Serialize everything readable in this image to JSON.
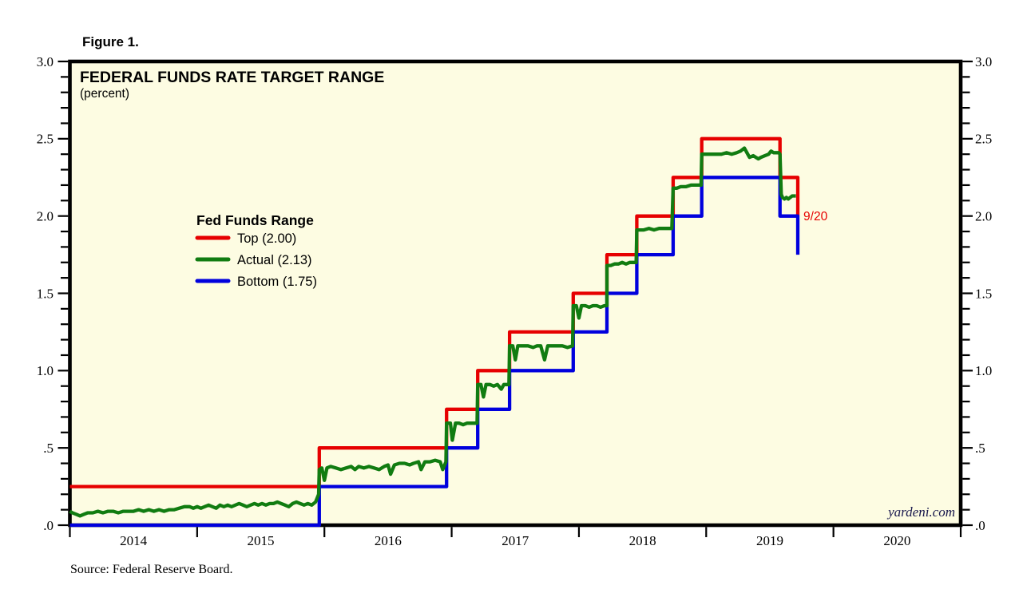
{
  "page": {
    "figure_label": "Figure 1.",
    "source_note": "Source: Federal Reserve Board.",
    "watermark": "yardeni.com"
  },
  "chart_data": {
    "type": "line",
    "title": "FEDERAL FUNDS RATE TARGET RANGE",
    "subtitle": "(percent)",
    "legend_title": "Fed Funds Range",
    "legend_position": "upper-left-inside",
    "grid": false,
    "x_domain": [
      2014,
      2021
    ],
    "y_domain": [
      0,
      3.0
    ],
    "y_axis": {
      "sides": "both",
      "minor_step": 0.1,
      "major_ticks": [
        {
          "v": 3.0,
          "label": "3.0"
        },
        {
          "v": 2.5,
          "label": "2.5"
        },
        {
          "v": 2.0,
          "label": "2.0"
        },
        {
          "v": 1.5,
          "label": "1.5"
        },
        {
          "v": 1.0,
          "label": "1.0"
        },
        {
          "v": 0.5,
          "label": ".5"
        },
        {
          "v": 0.0,
          "label": ".0"
        }
      ]
    },
    "x_axis": {
      "tick_years": [
        2014,
        2015,
        2016,
        2017,
        2018,
        2019,
        2020,
        2021
      ],
      "year_labels": [
        {
          "v": 2014.5,
          "label": "2014"
        },
        {
          "v": 2015.5,
          "label": "2015"
        },
        {
          "v": 2016.5,
          "label": "2016"
        },
        {
          "v": 2017.5,
          "label": "2017"
        },
        {
          "v": 2018.5,
          "label": "2018"
        },
        {
          "v": 2019.5,
          "label": "2019"
        },
        {
          "v": 2020.5,
          "label": "2020"
        }
      ]
    },
    "colors": {
      "plot_bg": "#fdfce2",
      "frame": "#000000"
    },
    "annotation": {
      "label": "9/20",
      "x": 2019.72,
      "y": 2.0,
      "color": "#e60000"
    },
    "draw_order": [
      0,
      2,
      1
    ],
    "series": [
      {
        "name": "Top (2.00)",
        "color": "#e60000",
        "points": [
          [
            2014.0,
            0.25
          ],
          [
            2015.96,
            0.25
          ],
          [
            2015.96,
            0.5
          ],
          [
            2016.96,
            0.5
          ],
          [
            2016.96,
            0.75
          ],
          [
            2017.205,
            0.75
          ],
          [
            2017.205,
            1.0
          ],
          [
            2017.455,
            1.0
          ],
          [
            2017.455,
            1.25
          ],
          [
            2017.955,
            1.25
          ],
          [
            2017.955,
            1.5
          ],
          [
            2018.22,
            1.5
          ],
          [
            2018.22,
            1.75
          ],
          [
            2018.455,
            1.75
          ],
          [
            2018.455,
            2.0
          ],
          [
            2018.74,
            2.0
          ],
          [
            2018.74,
            2.25
          ],
          [
            2018.965,
            2.25
          ],
          [
            2018.965,
            2.5
          ],
          [
            2019.58,
            2.5
          ],
          [
            2019.58,
            2.25
          ],
          [
            2019.72,
            2.25
          ],
          [
            2019.72,
            2.0
          ]
        ]
      },
      {
        "name": "Actual (2.13)",
        "color": "#117c11",
        "points": [
          [
            2014.0,
            0.09
          ],
          [
            2014.02,
            0.08
          ],
          [
            2014.05,
            0.07
          ],
          [
            2014.08,
            0.06
          ],
          [
            2014.11,
            0.07
          ],
          [
            2014.14,
            0.08
          ],
          [
            2014.18,
            0.08
          ],
          [
            2014.22,
            0.09
          ],
          [
            2014.26,
            0.08
          ],
          [
            2014.3,
            0.09
          ],
          [
            2014.34,
            0.09
          ],
          [
            2014.38,
            0.08
          ],
          [
            2014.42,
            0.09
          ],
          [
            2014.46,
            0.09
          ],
          [
            2014.5,
            0.09
          ],
          [
            2014.54,
            0.1
          ],
          [
            2014.58,
            0.09
          ],
          [
            2014.62,
            0.1
          ],
          [
            2014.66,
            0.09
          ],
          [
            2014.7,
            0.1
          ],
          [
            2014.74,
            0.09
          ],
          [
            2014.78,
            0.1
          ],
          [
            2014.82,
            0.1
          ],
          [
            2014.86,
            0.11
          ],
          [
            2014.9,
            0.12
          ],
          [
            2014.94,
            0.12
          ],
          [
            2014.97,
            0.11
          ],
          [
            2015.0,
            0.12
          ],
          [
            2015.03,
            0.11
          ],
          [
            2015.06,
            0.12
          ],
          [
            2015.09,
            0.13
          ],
          [
            2015.12,
            0.12
          ],
          [
            2015.15,
            0.11
          ],
          [
            2015.18,
            0.13
          ],
          [
            2015.21,
            0.12
          ],
          [
            2015.24,
            0.13
          ],
          [
            2015.27,
            0.12
          ],
          [
            2015.3,
            0.13
          ],
          [
            2015.33,
            0.14
          ],
          [
            2015.36,
            0.13
          ],
          [
            2015.39,
            0.12
          ],
          [
            2015.42,
            0.13
          ],
          [
            2015.45,
            0.14
          ],
          [
            2015.48,
            0.13
          ],
          [
            2015.51,
            0.14
          ],
          [
            2015.54,
            0.13
          ],
          [
            2015.57,
            0.14
          ],
          [
            2015.6,
            0.14
          ],
          [
            2015.63,
            0.15
          ],
          [
            2015.66,
            0.14
          ],
          [
            2015.69,
            0.13
          ],
          [
            2015.72,
            0.12
          ],
          [
            2015.75,
            0.14
          ],
          [
            2015.78,
            0.15
          ],
          [
            2015.81,
            0.14
          ],
          [
            2015.84,
            0.13
          ],
          [
            2015.87,
            0.14
          ],
          [
            2015.9,
            0.13
          ],
          [
            2015.93,
            0.15
          ],
          [
            2015.955,
            0.2
          ],
          [
            2015.96,
            0.36
          ],
          [
            2015.98,
            0.37
          ],
          [
            2016.0,
            0.29
          ],
          [
            2016.02,
            0.37
          ],
          [
            2016.05,
            0.38
          ],
          [
            2016.09,
            0.37
          ],
          [
            2016.13,
            0.36
          ],
          [
            2016.17,
            0.37
          ],
          [
            2016.21,
            0.38
          ],
          [
            2016.24,
            0.36
          ],
          [
            2016.27,
            0.38
          ],
          [
            2016.31,
            0.37
          ],
          [
            2016.35,
            0.38
          ],
          [
            2016.39,
            0.37
          ],
          [
            2016.43,
            0.36
          ],
          [
            2016.47,
            0.38
          ],
          [
            2016.5,
            0.39
          ],
          [
            2016.52,
            0.33
          ],
          [
            2016.55,
            0.39
          ],
          [
            2016.59,
            0.4
          ],
          [
            2016.63,
            0.4
          ],
          [
            2016.67,
            0.39
          ],
          [
            2016.7,
            0.4
          ],
          [
            2016.74,
            0.41
          ],
          [
            2016.76,
            0.36
          ],
          [
            2016.79,
            0.41
          ],
          [
            2016.83,
            0.41
          ],
          [
            2016.87,
            0.42
          ],
          [
            2016.91,
            0.41
          ],
          [
            2016.93,
            0.36
          ],
          [
            2016.955,
            0.41
          ],
          [
            2016.96,
            0.66
          ],
          [
            2016.99,
            0.66
          ],
          [
            2017.005,
            0.55
          ],
          [
            2017.03,
            0.66
          ],
          [
            2017.06,
            0.66
          ],
          [
            2017.09,
            0.65
          ],
          [
            2017.12,
            0.66
          ],
          [
            2017.15,
            0.66
          ],
          [
            2017.18,
            0.66
          ],
          [
            2017.2,
            0.66
          ],
          [
            2017.205,
            0.91
          ],
          [
            2017.23,
            0.91
          ],
          [
            2017.25,
            0.83
          ],
          [
            2017.27,
            0.91
          ],
          [
            2017.3,
            0.91
          ],
          [
            2017.33,
            0.9
          ],
          [
            2017.36,
            0.91
          ],
          [
            2017.39,
            0.88
          ],
          [
            2017.41,
            0.91
          ],
          [
            2017.44,
            0.91
          ],
          [
            2017.45,
            0.91
          ],
          [
            2017.455,
            1.16
          ],
          [
            2017.48,
            1.16
          ],
          [
            2017.5,
            1.07
          ],
          [
            2017.52,
            1.16
          ],
          [
            2017.56,
            1.16
          ],
          [
            2017.6,
            1.16
          ],
          [
            2017.64,
            1.15
          ],
          [
            2017.67,
            1.16
          ],
          [
            2017.7,
            1.16
          ],
          [
            2017.73,
            1.07
          ],
          [
            2017.755,
            1.16
          ],
          [
            2017.79,
            1.16
          ],
          [
            2017.83,
            1.16
          ],
          [
            2017.87,
            1.16
          ],
          [
            2017.91,
            1.15
          ],
          [
            2017.95,
            1.16
          ],
          [
            2017.955,
            1.42
          ],
          [
            2017.98,
            1.42
          ],
          [
            2018.0,
            1.34
          ],
          [
            2018.02,
            1.42
          ],
          [
            2018.05,
            1.42
          ],
          [
            2018.08,
            1.41
          ],
          [
            2018.11,
            1.42
          ],
          [
            2018.14,
            1.42
          ],
          [
            2018.17,
            1.41
          ],
          [
            2018.2,
            1.42
          ],
          [
            2018.22,
            1.42
          ],
          [
            2018.22,
            1.68
          ],
          [
            2018.25,
            1.68
          ],
          [
            2018.28,
            1.69
          ],
          [
            2018.31,
            1.69
          ],
          [
            2018.34,
            1.7
          ],
          [
            2018.37,
            1.69
          ],
          [
            2018.4,
            1.7
          ],
          [
            2018.43,
            1.7
          ],
          [
            2018.45,
            1.7
          ],
          [
            2018.455,
            1.91
          ],
          [
            2018.48,
            1.91
          ],
          [
            2018.51,
            1.91
          ],
          [
            2018.55,
            1.92
          ],
          [
            2018.59,
            1.91
          ],
          [
            2018.63,
            1.92
          ],
          [
            2018.67,
            1.92
          ],
          [
            2018.7,
            1.92
          ],
          [
            2018.73,
            1.92
          ],
          [
            2018.74,
            2.18
          ],
          [
            2018.77,
            2.18
          ],
          [
            2018.8,
            2.19
          ],
          [
            2018.84,
            2.19
          ],
          [
            2018.88,
            2.2
          ],
          [
            2018.91,
            2.2
          ],
          [
            2018.94,
            2.2
          ],
          [
            2018.96,
            2.2
          ],
          [
            2018.965,
            2.4
          ],
          [
            2019.0,
            2.4
          ],
          [
            2019.04,
            2.4
          ],
          [
            2019.08,
            2.4
          ],
          [
            2019.12,
            2.4
          ],
          [
            2019.16,
            2.41
          ],
          [
            2019.2,
            2.4
          ],
          [
            2019.24,
            2.41
          ],
          [
            2019.27,
            2.42
          ],
          [
            2019.3,
            2.44
          ],
          [
            2019.32,
            2.41
          ],
          [
            2019.34,
            2.38
          ],
          [
            2019.37,
            2.39
          ],
          [
            2019.39,
            2.38
          ],
          [
            2019.41,
            2.37
          ],
          [
            2019.43,
            2.38
          ],
          [
            2019.46,
            2.39
          ],
          [
            2019.49,
            2.4
          ],
          [
            2019.51,
            2.42
          ],
          [
            2019.53,
            2.41
          ],
          [
            2019.55,
            2.41
          ],
          [
            2019.57,
            2.41
          ],
          [
            2019.58,
            2.4
          ],
          [
            2019.59,
            2.14
          ],
          [
            2019.6,
            2.12
          ],
          [
            2019.615,
            2.11
          ],
          [
            2019.63,
            2.12
          ],
          [
            2019.645,
            2.11
          ],
          [
            2019.66,
            2.12
          ],
          [
            2019.675,
            2.13
          ],
          [
            2019.69,
            2.13
          ],
          [
            2019.705,
            2.13
          ]
        ]
      },
      {
        "name": "Bottom (1.75)",
        "color": "#0000dd",
        "points": [
          [
            2014.0,
            0.0
          ],
          [
            2015.96,
            0.0
          ],
          [
            2015.96,
            0.25
          ],
          [
            2016.96,
            0.25
          ],
          [
            2016.96,
            0.5
          ],
          [
            2017.205,
            0.5
          ],
          [
            2017.205,
            0.75
          ],
          [
            2017.455,
            0.75
          ],
          [
            2017.455,
            1.0
          ],
          [
            2017.955,
            1.0
          ],
          [
            2017.955,
            1.25
          ],
          [
            2018.22,
            1.25
          ],
          [
            2018.22,
            1.5
          ],
          [
            2018.455,
            1.5
          ],
          [
            2018.455,
            1.75
          ],
          [
            2018.74,
            1.75
          ],
          [
            2018.74,
            2.0
          ],
          [
            2018.965,
            2.0
          ],
          [
            2018.965,
            2.25
          ],
          [
            2019.58,
            2.25
          ],
          [
            2019.58,
            2.0
          ],
          [
            2019.72,
            2.0
          ],
          [
            2019.72,
            1.75
          ]
        ]
      }
    ]
  }
}
